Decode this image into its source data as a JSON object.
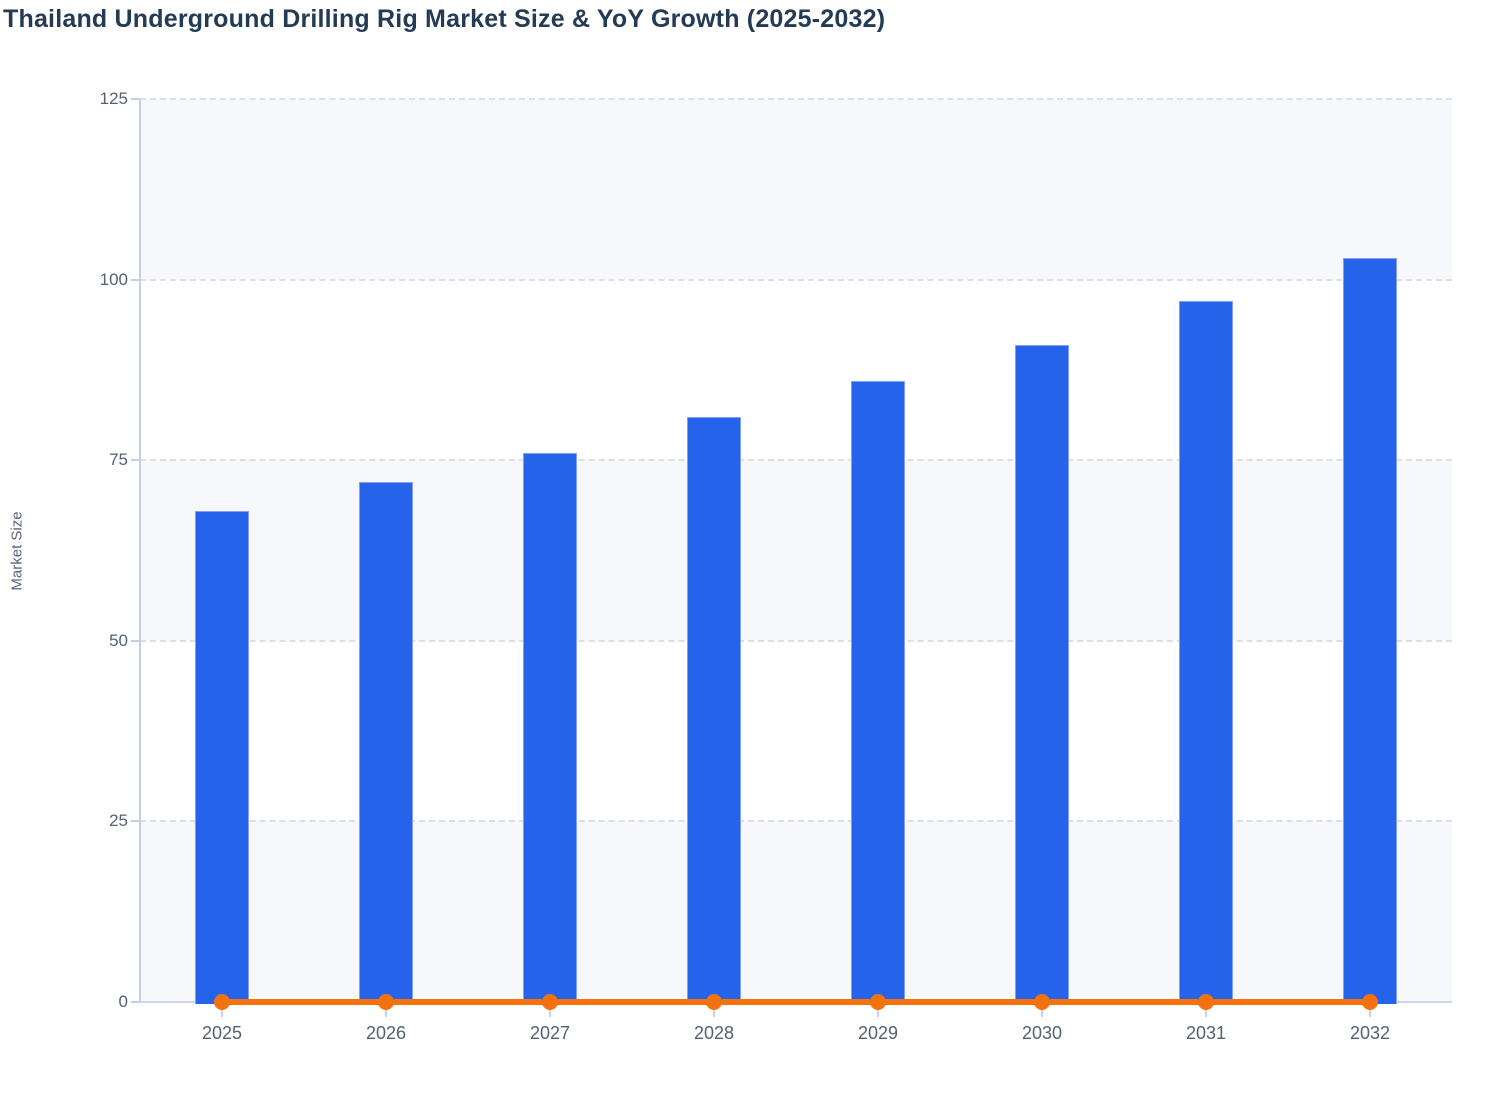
{
  "title": "Thailand Underground Drilling Rig Market Size & YoY Growth (2025-2032)",
  "chart_data": {
    "type": "bar",
    "title": "Thailand Underground Drilling Rig Market Size & YoY Growth (2025-2032)",
    "categories": [
      "2025",
      "2026",
      "2027",
      "2028",
      "2029",
      "2030",
      "2031",
      "2032"
    ],
    "series": [
      {
        "name": "Market Size",
        "type": "bar",
        "color": "#2563eb",
        "values": [
          68,
          72,
          76,
          81,
          86,
          91,
          97,
          103
        ]
      },
      {
        "name": "YoY Growth",
        "type": "line",
        "color": "#f4720d",
        "marker": "circle",
        "values": [
          0,
          0,
          0,
          0,
          0,
          0,
          0,
          0
        ]
      }
    ],
    "xlabel": "",
    "ylabel": "Market Size",
    "y_ticks": [
      0,
      25,
      50,
      75,
      100,
      125
    ],
    "ylim": [
      0,
      125
    ],
    "grid": "horizontal-dashed",
    "legend_position": "none",
    "plot_bands_alternating": true
  },
  "colors": {
    "bar_fill": "#2563eb",
    "bar_border": "#84a0f0",
    "line": "#f4720d",
    "marker": "#f4720d",
    "band_gray": "#f7f8fb",
    "gridline": "#dcdfe6",
    "axis_line": "#c5cde8",
    "baseline": "#ccd5ec",
    "x_tick": "#c9d1e6",
    "tick_text": "#556070",
    "title_text": "#243b55",
    "axis_title_text": "#5a6478",
    "background": "#ffffff"
  }
}
